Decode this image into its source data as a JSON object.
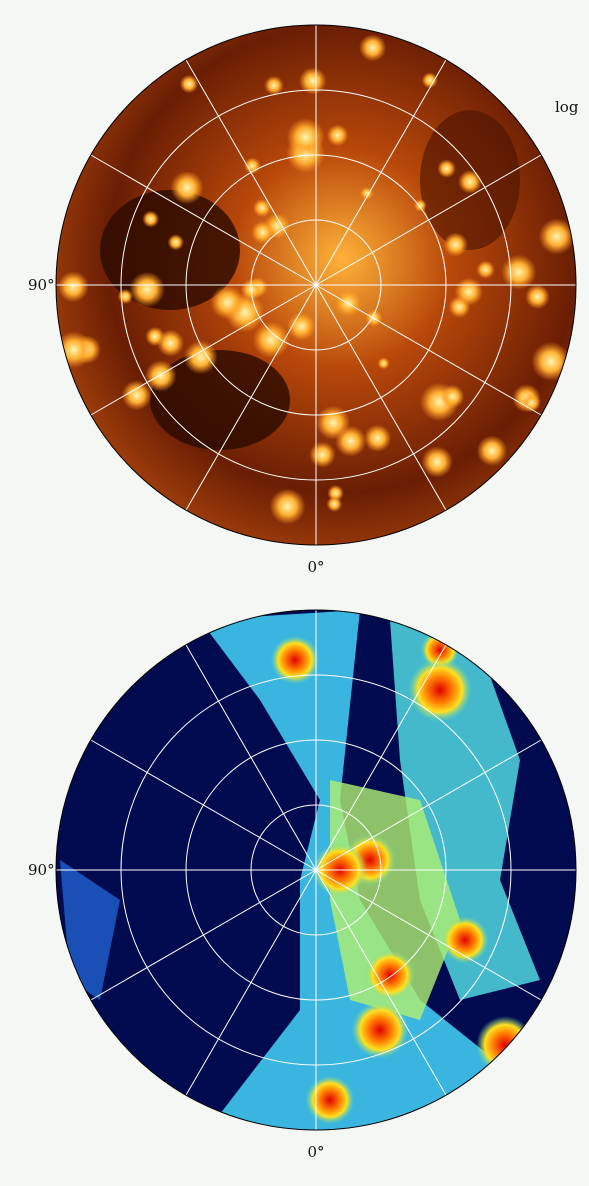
{
  "annotation": "log",
  "panels": [
    {
      "left_label": "90°",
      "bottom_label": "0°"
    },
    {
      "left_label": "90°",
      "bottom_label": "0°"
    }
  ]
}
